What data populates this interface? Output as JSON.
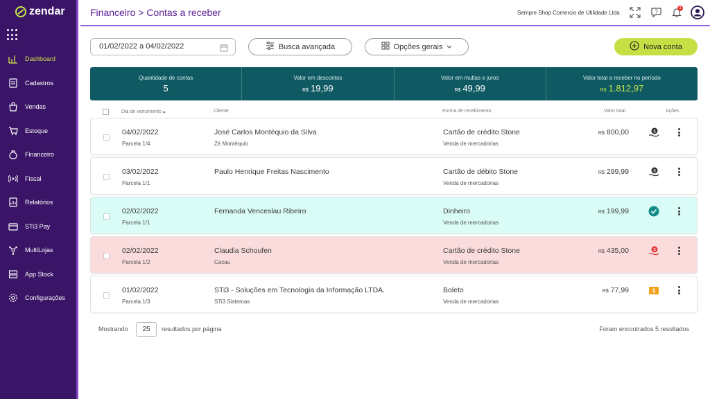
{
  "app": {
    "logo_text": "zendar",
    "brand_color": "#3a1466",
    "accent": "#c5e045",
    "teal": "#0f5a62"
  },
  "sidebar": {
    "items": [
      {
        "label": "Dashboard",
        "icon": "dashboard-icon",
        "active": true
      },
      {
        "label": "Cadastros",
        "icon": "register-icon"
      },
      {
        "label": "Vendas",
        "icon": "sales-bag-icon"
      },
      {
        "label": "Estoque",
        "icon": "stock-cart-icon"
      },
      {
        "label": "Financeiro",
        "icon": "money-bag-icon"
      },
      {
        "label": "Fiscal",
        "icon": "fiscal-signal-icon"
      },
      {
        "label": "Relatórios",
        "icon": "reports-icon"
      },
      {
        "label": "STi3 Pay",
        "icon": "pay-card-icon"
      },
      {
        "label": "MultiLojas",
        "icon": "multistore-icon"
      },
      {
        "label": "App Stock",
        "icon": "app-stock-icon"
      },
      {
        "label": "Configurações",
        "icon": "gear-icon"
      }
    ]
  },
  "header": {
    "breadcrumb": "Financeiro > Contas a receber",
    "company": "Sempre Shop Comercio de Utilidade Ltda",
    "notification_count": "1"
  },
  "filters": {
    "date_range": "01/02/2022 a 04/02/2022",
    "advanced_search": "Busca avançada",
    "general_options": "Opções gerais",
    "new_account": "Nova conta"
  },
  "summary": [
    {
      "label": "Quantidade de contas",
      "currency": "",
      "value": "5"
    },
    {
      "label": "Valor em descontos",
      "currency": "R$",
      "value": "19,99"
    },
    {
      "label": "Valor em multas e juros",
      "currency": "R$",
      "value": "49,99"
    },
    {
      "label": "Valor total a receber no período",
      "currency": "R$",
      "value": "1.812,97"
    }
  ],
  "table": {
    "headers": {
      "due_date": "Dia de vencimento",
      "client": "Cliente",
      "payment": "Forma de recebimento",
      "total": "Valor total",
      "actions": "Ações"
    },
    "rows": [
      {
        "date": "04/02/2022",
        "installment": "Parcela 1/4",
        "client": "José Carlos Montéquio da Silva",
        "client_alias": "Zé Montéquio",
        "payment": "Cartão de crédito Stone",
        "payment_type": "Venda de mercadorias",
        "currency": "R$",
        "amount": "800,00",
        "status": "pending",
        "status_icon": "coin-hand-icon"
      },
      {
        "date": "03/02/2022",
        "installment": "Parcela 1/1",
        "client": "Paulo Henrique Freitas Nascimento",
        "client_alias": "",
        "payment": "Cartão de débito Stone",
        "payment_type": "Venda de mercadorias",
        "currency": "R$",
        "amount": "299,99",
        "status": "pending",
        "status_icon": "coin-hand-icon"
      },
      {
        "date": "02/02/2022",
        "installment": "Parcela 1/1",
        "client": "Fernanda Venceslau Ribeiro",
        "client_alias": "",
        "payment": "Dinheiro",
        "payment_type": "Venda de mercadorias",
        "currency": "R$",
        "amount": "199,99",
        "status": "paid",
        "status_icon": "check-circle-icon"
      },
      {
        "date": "02/02/2022",
        "installment": "Parcela 1/2",
        "client": "Claudia Schoufen",
        "client_alias": "Cacau",
        "payment": "Cartão de crédito Stone",
        "payment_type": "Venda de mercadorias",
        "currency": "R$",
        "amount": "435,00",
        "status": "overdue",
        "status_icon": "coin-hand-red-icon"
      },
      {
        "date": "01/02/2022",
        "installment": "Parcela 1/3",
        "client": "STi3 - Soluções em Tecnologia da Informação LTDA.",
        "client_alias": "STi3 Sistemas",
        "payment": "Boleto",
        "payment_type": "Venda de mercadorias",
        "currency": "R$",
        "amount": "77,99",
        "status": "boleto",
        "status_icon": "boleto-ticket-icon"
      }
    ]
  },
  "footer": {
    "showing": "Mostrando",
    "per_page": "25",
    "per_page_suffix": "resultados por página",
    "results": "Foram encontrados 5 resultados"
  }
}
